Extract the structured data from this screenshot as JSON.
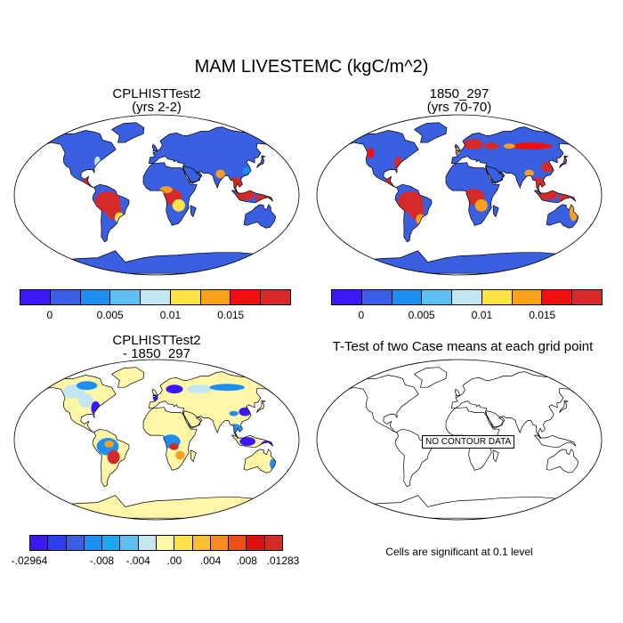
{
  "title": "MAM LIVESTEMC (kgC/m^2)",
  "panels": {
    "top_left": {
      "title_line1": "CPLHISTTest2",
      "title_line2": "(yrs 2-2)"
    },
    "top_right": {
      "title_line1": "1850_297",
      "title_line2": "(yrs 70-70)"
    },
    "bottom_left": {
      "title_line1": "CPLHISTTest2",
      "title_line2": "- 1850_297"
    },
    "bottom_right": {
      "title": "T-Test of two Case means at each grid point",
      "no_data_label": "NO CONTOUR DATA",
      "footnote": "Cells are significant at 0.1 level"
    }
  },
  "colorbar_top": {
    "colors": [
      "#3b19f5",
      "#3a5fe0",
      "#1e8ef0",
      "#5ec0f2",
      "#c2e6f2",
      "#fde24a",
      "#f8a020",
      "#f01010",
      "#d42a2a"
    ],
    "labels": [
      "0",
      "0.005",
      "0.01",
      "0.015"
    ]
  },
  "colorbar_bottom": {
    "colors": [
      "#3b19f5",
      "#2f3ef0",
      "#3a5fe0",
      "#1e8ef0",
      "#1ea8f0",
      "#5ec0f2",
      "#c2e6f2",
      "#fff6a8",
      "#fde24a",
      "#fbbf30",
      "#f88c1c",
      "#f05018",
      "#e01010",
      "#d42a2a"
    ],
    "labels": [
      "-.02964",
      "-.008",
      "-.004",
      ".00",
      ".004",
      ".008",
      ".01283"
    ]
  },
  "map_colors": {
    "ocean": "#ffffff",
    "land_base_abs": "#3a5fe0",
    "land_base_diff": "#fff6a8",
    "tropical_high": "#d42a2a",
    "boreal_red": "#f01010",
    "mid": "#f8a020",
    "warm": "#fde24a",
    "light": "#c2e6f2",
    "blue_deep": "#3b19f5",
    "blue_mid": "#1e8ef0"
  }
}
